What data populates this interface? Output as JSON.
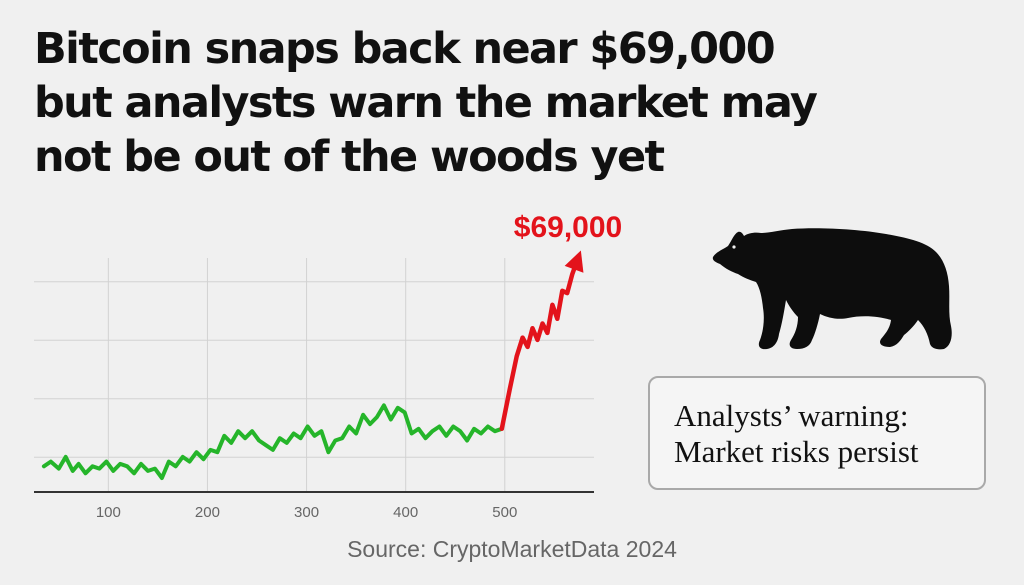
{
  "headline": {
    "line1": "Bitcoin snaps back near $69,000",
    "line2": "but analysts warn the market may",
    "line3": "not be out of the woods yet"
  },
  "callout": {
    "line1": "Analysts’ warning:",
    "line2": "Market risks persist"
  },
  "source": "Source: CryptoMarketData 2024",
  "colors": {
    "gain": "#25b52a",
    "surge": "#e3131b",
    "grid": "#d2d2d2",
    "axis": "#333333"
  },
  "icons": {
    "bear": "bear-silhouette-icon"
  },
  "chart_data": {
    "type": "line",
    "title": "",
    "xlabel": "",
    "ylabel": "",
    "xlim": [
      25,
      590
    ],
    "ylim": [
      0,
      100
    ],
    "x_ticks": [
      100,
      200,
      300,
      400,
      500
    ],
    "grid": true,
    "annotation": "$69,000",
    "series": [
      {
        "role": "baseline",
        "color": "#25b52a",
        "x": [
          35,
          42,
          50,
          57,
          64,
          70,
          77,
          84,
          91,
          98,
          105,
          112,
          119,
          126,
          133,
          140,
          147,
          154,
          161,
          168,
          175,
          182,
          189,
          196,
          203,
          210,
          217,
          224,
          231,
          238,
          245,
          252,
          259,
          266,
          273,
          280,
          287,
          294,
          301,
          308,
          315,
          322,
          329,
          336,
          343,
          350,
          357,
          364,
          371,
          378,
          385,
          392,
          399,
          406,
          413,
          420,
          427,
          434,
          441,
          448,
          455,
          462,
          469,
          476,
          483,
          490,
          497
        ],
        "y": [
          11,
          13,
          10,
          15,
          9,
          12,
          8,
          11,
          10,
          13,
          9,
          12,
          11,
          8,
          12,
          9,
          10,
          6,
          13,
          11,
          15,
          13,
          17,
          14,
          18,
          17,
          24,
          21,
          26,
          23,
          26,
          22,
          20,
          18,
          23,
          21,
          25,
          23,
          28,
          24,
          26,
          17,
          22,
          23,
          28,
          25,
          33,
          29,
          32,
          37,
          31,
          36,
          34,
          25,
          27,
          23,
          26,
          28,
          24,
          28,
          26,
          22,
          27,
          25,
          28,
          26,
          27
        ]
      },
      {
        "role": "surge",
        "color": "#e3131b",
        "x": [
          497,
          505,
          512,
          518,
          523,
          528,
          533,
          538,
          543,
          548,
          553,
          558,
          563,
          568,
          574
        ],
        "y": [
          27,
          44,
          58,
          66,
          62,
          70,
          65,
          72,
          68,
          80,
          74,
          86,
          85,
          93,
          100
        ]
      }
    ]
  }
}
